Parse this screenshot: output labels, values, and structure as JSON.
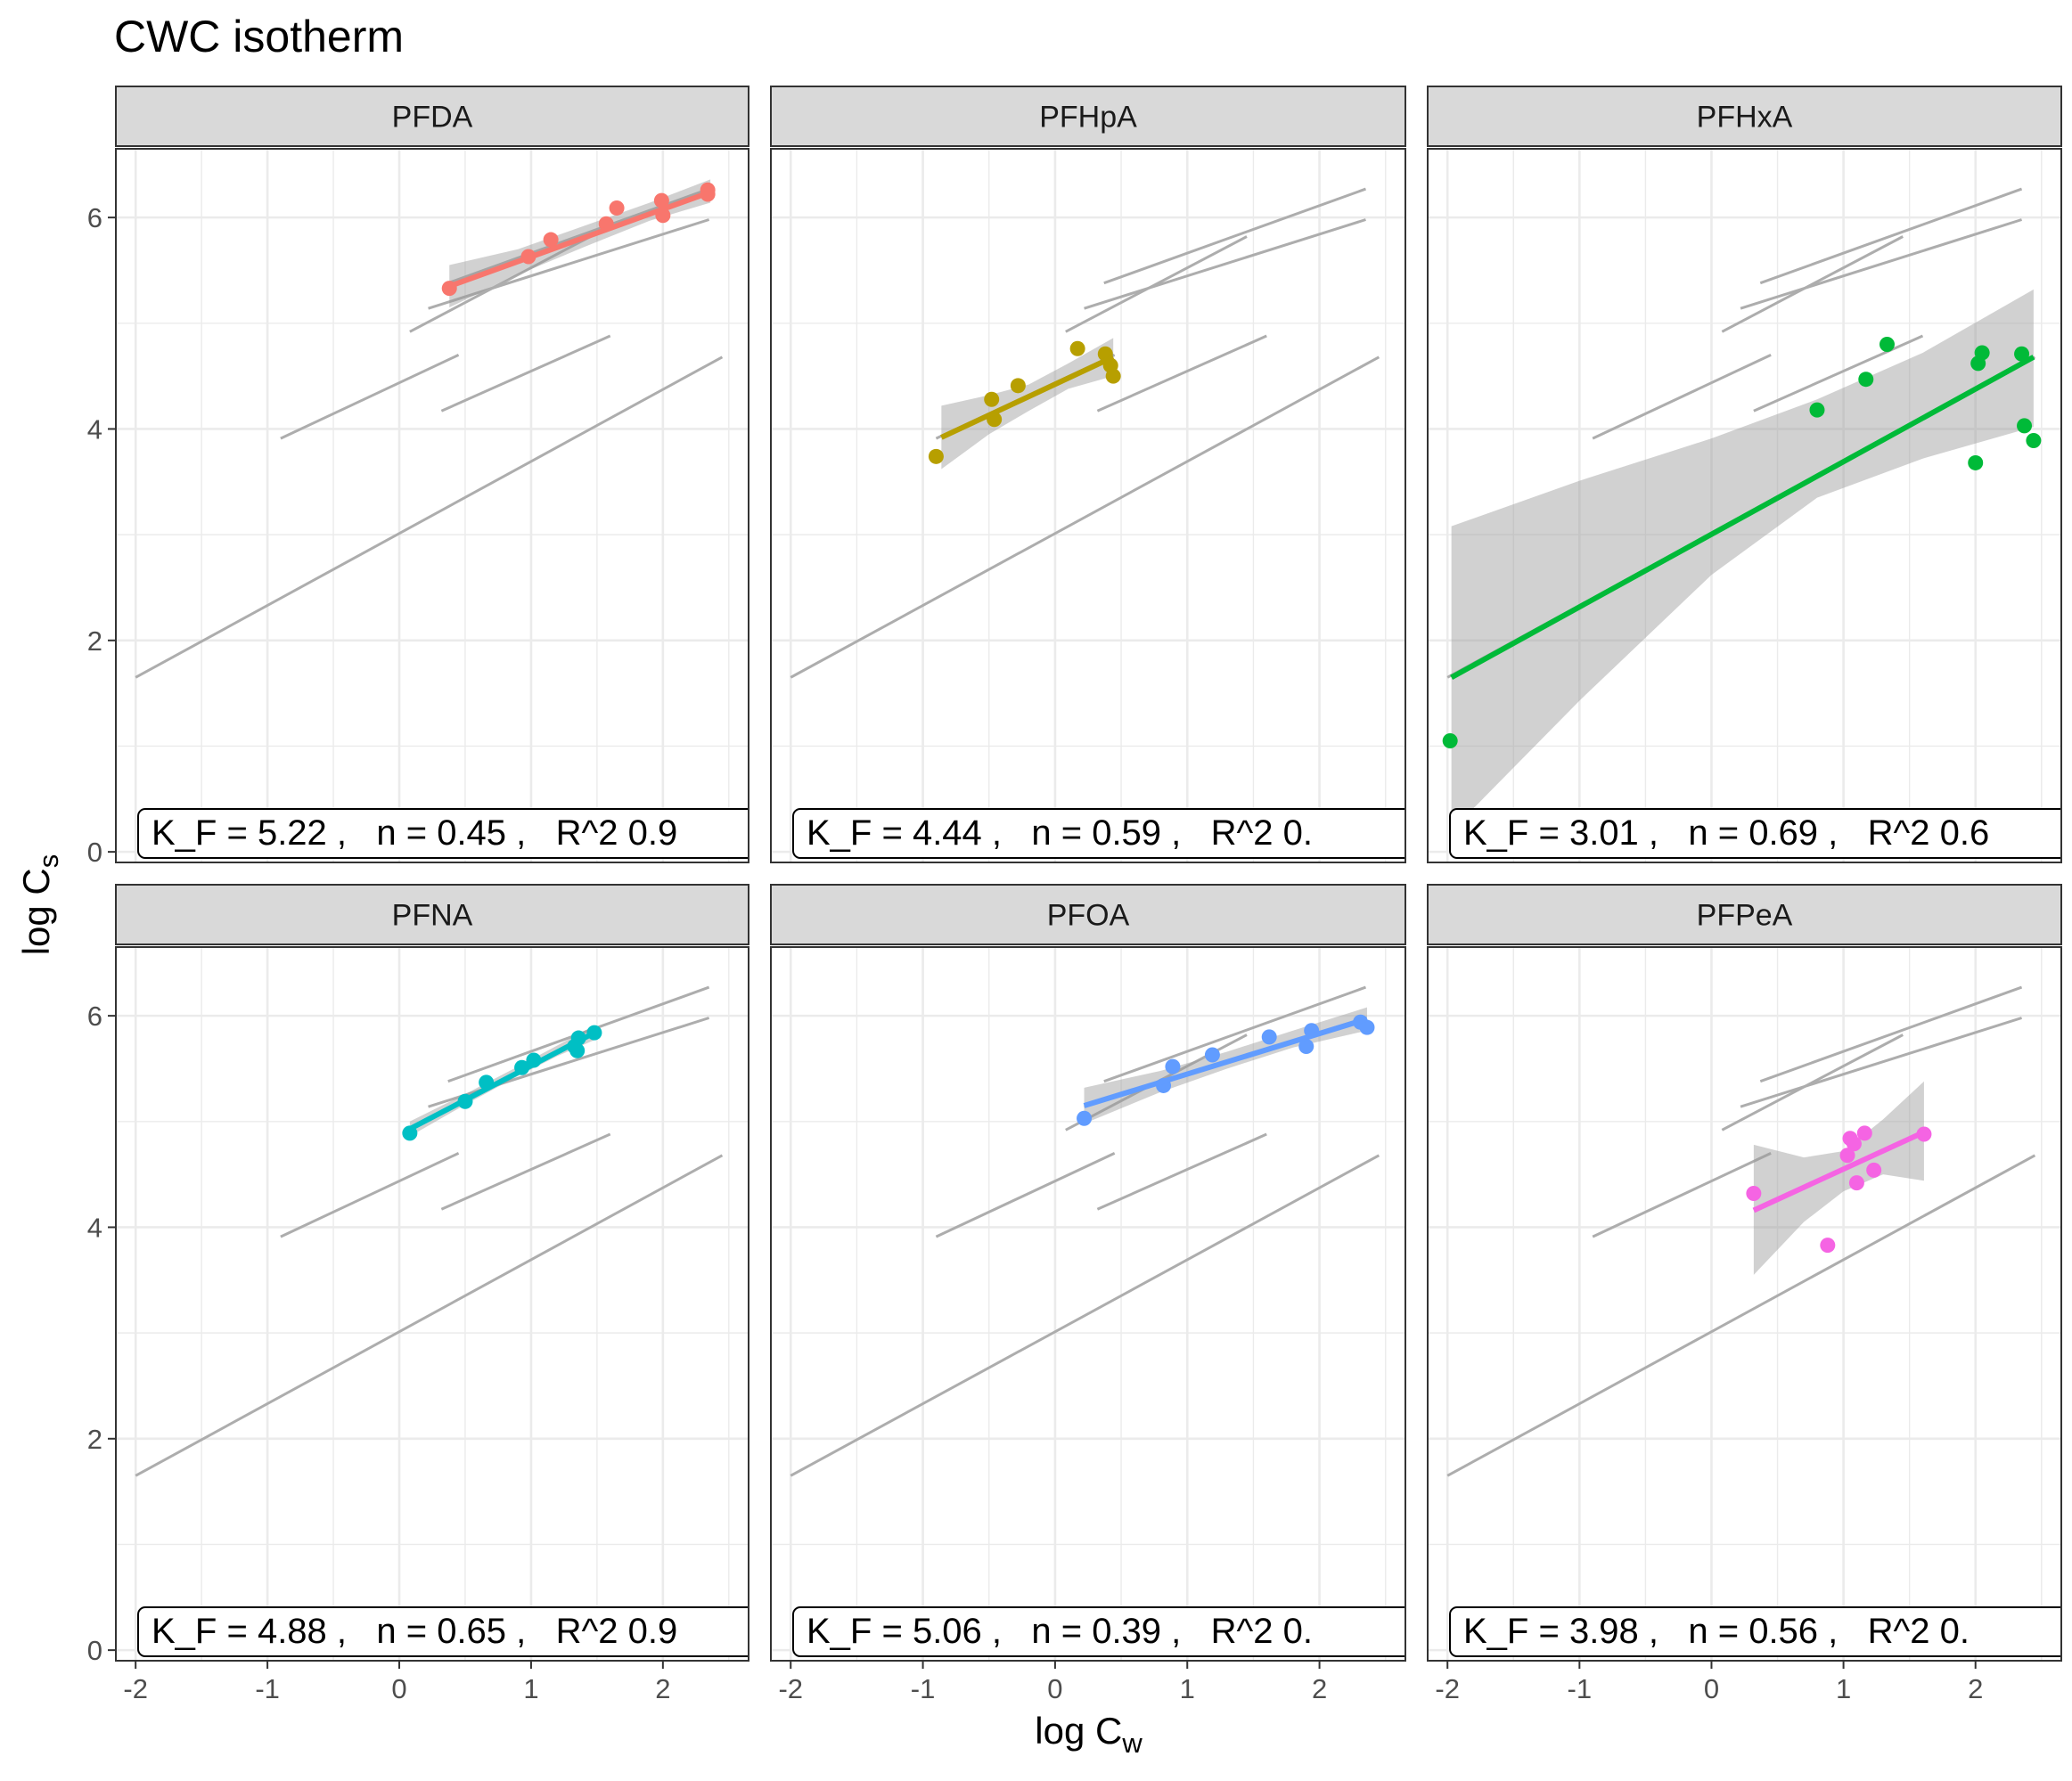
{
  "chart_data": {
    "type": "scatter",
    "title": "CWC isotherm",
    "xlabel": {
      "base": "log C",
      "sub": "w"
    },
    "ylabel": {
      "base": "log C",
      "sub": "s"
    },
    "xlim": [
      -2.15,
      2.65
    ],
    "ylim": [
      -0.1,
      6.65
    ],
    "x_ticks": [
      -2,
      -1,
      0,
      1,
      2
    ],
    "y_ticks": [
      0,
      2,
      4,
      6
    ],
    "grid": true,
    "legend": "none",
    "reference_lines": [
      {
        "x": [
          -2.0,
          2.45
        ],
        "y": [
          1.65,
          4.68
        ]
      },
      {
        "x": [
          -0.9,
          0.45
        ],
        "y": [
          3.91,
          4.7
        ]
      },
      {
        "x": [
          0.32,
          1.6
        ],
        "y": [
          4.17,
          4.88
        ]
      },
      {
        "x": [
          0.08,
          1.45
        ],
        "y": [
          4.92,
          5.82
        ]
      },
      {
        "x": [
          0.22,
          2.35
        ],
        "y": [
          5.14,
          5.98
        ]
      },
      {
        "x": [
          0.37,
          2.35
        ],
        "y": [
          5.38,
          6.27
        ]
      }
    ],
    "panels": [
      {
        "name": "PFDA",
        "color": "#F8766D",
        "annotation": "K_F = 5.22 ,   n = 0.45 ,   R^2 0.9",
        "points": [
          [
            0.38,
            5.33
          ],
          [
            0.98,
            5.63
          ],
          [
            1.15,
            5.79
          ],
          [
            1.57,
            5.94
          ],
          [
            1.65,
            6.09
          ],
          [
            1.99,
            6.16
          ],
          [
            2.0,
            6.02
          ],
          [
            2.34,
            6.26
          ],
          [
            2.34,
            6.22
          ]
        ],
        "fit": [
          [
            0.38,
            5.35
          ],
          [
            2.36,
            6.24
          ]
        ],
        "band": [
          [
            0.38,
            5.15,
            5.55
          ],
          [
            0.9,
            5.46,
            5.7
          ],
          [
            1.4,
            5.72,
            5.92
          ],
          [
            1.9,
            5.97,
            6.14
          ],
          [
            2.36,
            6.14,
            6.36
          ]
        ]
      },
      {
        "name": "PFHpA",
        "color": "#B79F00",
        "annotation": "K_F = 4.44 ,   n = 0.59 ,   R^2 0.",
        "points": [
          [
            -0.9,
            3.74
          ],
          [
            -0.48,
            4.28
          ],
          [
            -0.46,
            4.09
          ],
          [
            -0.28,
            4.41
          ],
          [
            0.17,
            4.76
          ],
          [
            0.38,
            4.71
          ],
          [
            0.42,
            4.6
          ],
          [
            0.44,
            4.5
          ]
        ],
        "fit": [
          [
            -0.86,
            3.92
          ],
          [
            0.44,
            4.68
          ]
        ],
        "band": [
          [
            -0.86,
            3.62,
            4.22
          ],
          [
            -0.5,
            3.95,
            4.32
          ],
          [
            -0.2,
            4.17,
            4.42
          ],
          [
            0.1,
            4.38,
            4.62
          ],
          [
            0.44,
            4.5,
            4.86
          ]
        ]
      },
      {
        "name": "PFHxA",
        "color": "#00BA38",
        "annotation": "K_F = 3.01 ,   n = 0.69 ,   R^2 0.6",
        "points": [
          [
            -1.98,
            1.05
          ],
          [
            0.8,
            4.18
          ],
          [
            1.17,
            4.47
          ],
          [
            1.33,
            4.8
          ],
          [
            2.0,
            3.68
          ],
          [
            2.02,
            4.62
          ],
          [
            2.05,
            4.72
          ],
          [
            2.35,
            4.71
          ],
          [
            2.37,
            4.03
          ],
          [
            2.44,
            3.89
          ]
        ],
        "fit": [
          [
            -1.97,
            1.65
          ],
          [
            2.44,
            4.68
          ]
        ],
        "band": [
          [
            -1.97,
            0.2,
            3.08
          ],
          [
            -1.0,
            1.43,
            3.51
          ],
          [
            0.0,
            2.62,
            3.91
          ],
          [
            0.8,
            3.35,
            4.28
          ],
          [
            1.6,
            3.72,
            4.72
          ],
          [
            2.44,
            4.02,
            5.32
          ]
        ]
      },
      {
        "name": "PFNA",
        "color": "#00BFC4",
        "annotation": "K_F = 4.88 ,   n = 0.65 ,   R^2 0.9",
        "points": [
          [
            0.08,
            4.89
          ],
          [
            0.5,
            5.19
          ],
          [
            0.66,
            5.37
          ],
          [
            0.93,
            5.51
          ],
          [
            1.02,
            5.58
          ],
          [
            1.33,
            5.71
          ],
          [
            1.35,
            5.67
          ],
          [
            1.36,
            5.79
          ],
          [
            1.48,
            5.84
          ]
        ],
        "fit": [
          [
            0.08,
            4.93
          ],
          [
            1.48,
            5.84
          ]
        ],
        "band": [
          [
            0.08,
            4.86,
            5.0
          ],
          [
            0.5,
            5.16,
            5.26
          ],
          [
            0.9,
            5.43,
            5.52
          ],
          [
            1.2,
            5.62,
            5.72
          ],
          [
            1.48,
            5.77,
            5.91
          ]
        ]
      },
      {
        "name": "PFOA",
        "color": "#619CFF",
        "annotation": "K_F = 5.06 ,   n = 0.39 ,   R^2 0.",
        "points": [
          [
            0.22,
            5.03
          ],
          [
            0.82,
            5.34
          ],
          [
            0.89,
            5.52
          ],
          [
            1.19,
            5.63
          ],
          [
            1.62,
            5.8
          ],
          [
            1.9,
            5.71
          ],
          [
            1.94,
            5.86
          ],
          [
            2.31,
            5.94
          ],
          [
            2.36,
            5.89
          ]
        ],
        "fit": [
          [
            0.22,
            5.15
          ],
          [
            2.36,
            5.97
          ]
        ],
        "band": [
          [
            0.22,
            4.98,
            5.32
          ],
          [
            0.8,
            5.28,
            5.48
          ],
          [
            1.3,
            5.5,
            5.66
          ],
          [
            1.8,
            5.7,
            5.86
          ],
          [
            2.36,
            5.86,
            6.08
          ]
        ]
      },
      {
        "name": "PFPeA",
        "color": "#F564E3",
        "annotation": "K_F = 3.98 ,   n = 0.56 ,   R^2 0.",
        "points": [
          [
            0.32,
            4.32
          ],
          [
            0.88,
            3.83
          ],
          [
            1.03,
            4.68
          ],
          [
            1.05,
            4.84
          ],
          [
            1.08,
            4.79
          ],
          [
            1.1,
            4.42
          ],
          [
            1.16,
            4.89
          ],
          [
            1.23,
            4.54
          ],
          [
            1.61,
            4.88
          ]
        ],
        "fit": [
          [
            0.32,
            4.16
          ],
          [
            1.61,
            4.9
          ]
        ],
        "band": [
          [
            0.32,
            3.55,
            4.78
          ],
          [
            0.7,
            4.05,
            4.66
          ],
          [
            1.0,
            4.34,
            4.72
          ],
          [
            1.3,
            4.5,
            5.02
          ],
          [
            1.61,
            4.44,
            5.38
          ]
        ]
      }
    ]
  }
}
